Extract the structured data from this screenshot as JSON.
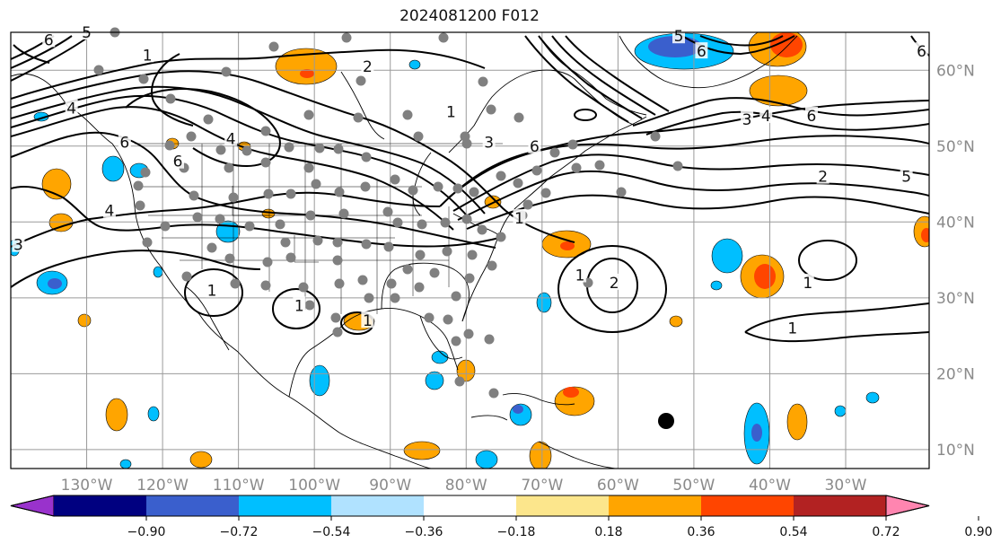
{
  "title": "2024081200 F012",
  "map": {
    "lon_range": [
      -140,
      -19
    ],
    "lat_range": [
      7.5,
      65
    ],
    "lon_ticks": [
      {
        "value": -130,
        "label": "130°W"
      },
      {
        "value": -120,
        "label": "120°W"
      },
      {
        "value": -110,
        "label": "110°W"
      },
      {
        "value": -100,
        "label": "100°W"
      },
      {
        "value": -90,
        "label": "90°W"
      },
      {
        "value": -80,
        "label": "80°W"
      },
      {
        "value": -70,
        "label": "70°W"
      },
      {
        "value": -60,
        "label": "60°W"
      },
      {
        "value": -50,
        "label": "50°W"
      },
      {
        "value": -40,
        "label": "40°W"
      },
      {
        "value": -30,
        "label": "30°W"
      }
    ],
    "lat_ticks": [
      {
        "value": 10,
        "label": "10°N"
      },
      {
        "value": 20,
        "label": "20°N"
      },
      {
        "value": 30,
        "label": "30°N"
      },
      {
        "value": 40,
        "label": "40°N"
      },
      {
        "value": 50,
        "label": "50°N"
      },
      {
        "value": 60,
        "label": "60°N"
      }
    ],
    "grid": true
  },
  "colorbar": {
    "colors": [
      "#9932cc",
      "#000080",
      "#3a5fcd",
      "#00bfff",
      "#b0e2ff",
      "#ffffff",
      "#fce68c",
      "#ffa500",
      "#ff4500",
      "#b22222",
      "#ff85b0"
    ],
    "ticks": [
      "−0.90",
      "−0.72",
      "−0.54",
      "−0.36",
      "−0.18",
      "0.18",
      "0.36",
      "0.54",
      "0.72",
      "0.90"
    ]
  },
  "contour_labels": [
    {
      "text": "1",
      "lon": -122,
      "lat": 62
    },
    {
      "text": "2",
      "lon": -93,
      "lat": 60.5
    },
    {
      "text": "1",
      "lon": -82,
      "lat": 54.5
    },
    {
      "text": "6",
      "lon": -125,
      "lat": 50.5
    },
    {
      "text": "4",
      "lon": -111,
      "lat": 51
    },
    {
      "text": "6",
      "lon": -118,
      "lat": 48
    },
    {
      "text": "4",
      "lon": -127,
      "lat": 41.5
    },
    {
      "text": "3",
      "lon": -139,
      "lat": 37
    },
    {
      "text": "6",
      "lon": -135,
      "lat": 64
    },
    {
      "text": "5",
      "lon": -130,
      "lat": 65
    },
    {
      "text": "4",
      "lon": -132,
      "lat": 55
    },
    {
      "text": "3",
      "lon": -77,
      "lat": 50.5
    },
    {
      "text": "6",
      "lon": -71,
      "lat": 50
    },
    {
      "text": "1",
      "lon": -73,
      "lat": 40.5
    },
    {
      "text": "5",
      "lon": -52,
      "lat": 64.5
    },
    {
      "text": "6",
      "lon": -49,
      "lat": 62.5
    },
    {
      "text": "3",
      "lon": -43,
      "lat": 53.5
    },
    {
      "text": "4",
      "lon": -40.5,
      "lat": 54
    },
    {
      "text": "6",
      "lon": -34.5,
      "lat": 54
    },
    {
      "text": "2",
      "lon": -33,
      "lat": 46
    },
    {
      "text": "5",
      "lon": -22,
      "lat": 46
    },
    {
      "text": "6",
      "lon": -20,
      "lat": 62.5
    },
    {
      "text": "1",
      "lon": -65,
      "lat": 33
    },
    {
      "text": "2",
      "lon": -60.5,
      "lat": 32
    },
    {
      "text": "1",
      "lon": -35,
      "lat": 32
    },
    {
      "text": "1",
      "lon": -37,
      "lat": 26
    },
    {
      "text": "1",
      "lon": -113.5,
      "lat": 31
    },
    {
      "text": "1",
      "lon": -102,
      "lat": 29
    },
    {
      "text": "1",
      "lon": -93,
      "lat": 27
    }
  ]
}
